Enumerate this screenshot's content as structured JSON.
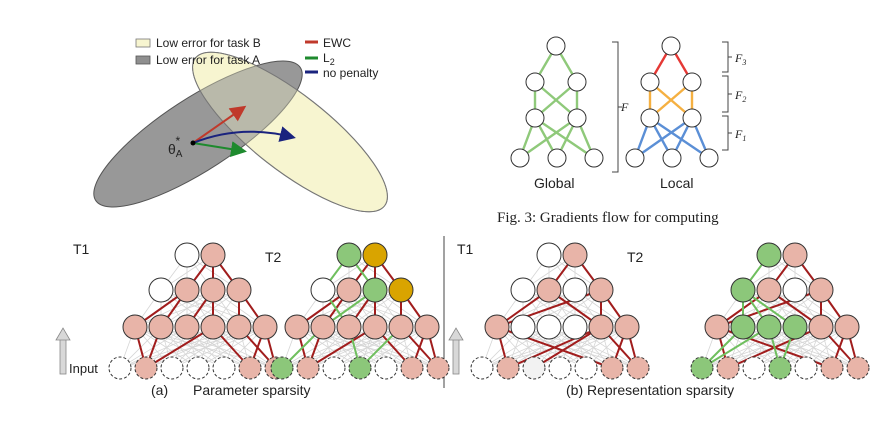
{
  "legend_a": {
    "task_b": "Low error for task B",
    "task_a": "Low error for task A",
    "ewc": "EWC",
    "l2": "L",
    "l2_sub": "2",
    "no_penalty": "no penalty",
    "theta": "θ",
    "theta_sub": "A",
    "theta_sup": "*"
  },
  "gradients": {
    "f_label": "F",
    "f1": "F",
    "f1_sub": "1",
    "f2": "F",
    "f2_sub": "2",
    "f3": "F",
    "f3_sub": "3",
    "global": "Global",
    "local": "Local",
    "caption": "Fig. 3: Gradients flow for computing"
  },
  "panels": {
    "t1_left": "T1",
    "t2_left": "T2",
    "t1_right": "T1",
    "t2_right": "T2",
    "input": "Input",
    "caption_a_letter": "(a)",
    "caption_a_text": "Parameter sparsity",
    "caption_b": "(b) Representation  sparsity"
  },
  "colors": {
    "ewc": "#c0392b",
    "l2": "#1e8a2e",
    "no_penalty": "#1a237e",
    "green_grad": "#8fc97a",
    "red_grad": "#e53935",
    "orange_grad": "#f5b041",
    "blue_grad": "#5b8fd6",
    "node_pink": "#e8b4a8",
    "node_green": "#8cc77a",
    "node_gold": "#d9a400",
    "edge_red": "#a11d1d",
    "edge_green": "#6fbf5e"
  }
}
